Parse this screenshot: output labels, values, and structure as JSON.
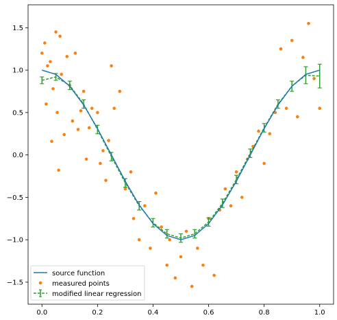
{
  "chart_data": {
    "type": "line",
    "title": "",
    "xlabel": "",
    "ylabel": "",
    "xlim": [
      -0.05,
      1.05
    ],
    "ylim": [
      -1.76,
      1.77
    ],
    "grid": false,
    "legend_position": "lower-left",
    "x_ticks": [
      0.0,
      0.2,
      0.4,
      0.6,
      0.8,
      1.0
    ],
    "x_tick_labels": [
      "0.0",
      "0.2",
      "0.4",
      "0.6",
      "0.8",
      "1.0"
    ],
    "y_ticks": [
      -1.5,
      -1.0,
      -0.5,
      0.0,
      0.5,
      1.0,
      1.5
    ],
    "y_tick_labels": [
      "−1.5",
      "−1.0",
      "−0.5",
      "0.0",
      "0.5",
      "1.0",
      "1.5"
    ],
    "legend": [
      {
        "label": "source function",
        "series": "source"
      },
      {
        "label": "measured points",
        "series": "measured"
      },
      {
        "label": "modified linear regression",
        "series": "regression"
      }
    ],
    "series": [
      {
        "name": "source function",
        "kind": "line",
        "color": "#1f77b4",
        "x": [
          0.0,
          0.05,
          0.1,
          0.15,
          0.2,
          0.25,
          0.3,
          0.35,
          0.4,
          0.45,
          0.5,
          0.55,
          0.6,
          0.65,
          0.7,
          0.75,
          0.8,
          0.85,
          0.9,
          0.95,
          1.0
        ],
        "y": [
          1.0,
          0.95,
          0.81,
          0.59,
          0.31,
          0.0,
          -0.31,
          -0.59,
          -0.81,
          -0.95,
          -1.0,
          -0.95,
          -0.81,
          -0.59,
          -0.31,
          0.0,
          0.31,
          0.59,
          0.81,
          0.95,
          1.0
        ]
      },
      {
        "name": "modified linear regression",
        "kind": "errorbar",
        "color": "#2ca02c",
        "x": [
          0.0,
          0.05,
          0.1,
          0.15,
          0.2,
          0.25,
          0.3,
          0.35,
          0.4,
          0.45,
          0.5,
          0.55,
          0.6,
          0.65,
          0.7,
          0.75,
          0.8,
          0.85,
          0.9,
          0.95,
          1.0
        ],
        "y": [
          0.88,
          0.92,
          0.82,
          0.6,
          0.3,
          -0.02,
          -0.33,
          -0.6,
          -0.8,
          -0.93,
          -0.98,
          -0.93,
          -0.79,
          -0.57,
          -0.29,
          0.02,
          0.32,
          0.6,
          0.81,
          0.94,
          0.93
        ],
        "yerr": [
          0.04,
          0.04,
          0.05,
          0.05,
          0.05,
          0.05,
          0.05,
          0.05,
          0.05,
          0.05,
          0.05,
          0.05,
          0.05,
          0.05,
          0.05,
          0.05,
          0.05,
          0.05,
          0.06,
          0.1,
          0.14
        ]
      },
      {
        "name": "measured points",
        "kind": "scatter",
        "color": "#ff7f0e",
        "x": [
          0.0,
          0.01,
          0.015,
          0.02,
          0.03,
          0.035,
          0.04,
          0.05,
          0.055,
          0.06,
          0.065,
          0.07,
          0.08,
          0.09,
          0.1,
          0.11,
          0.12,
          0.13,
          0.14,
          0.15,
          0.16,
          0.17,
          0.18,
          0.2,
          0.21,
          0.22,
          0.23,
          0.24,
          0.25,
          0.26,
          0.28,
          0.3,
          0.32,
          0.33,
          0.35,
          0.37,
          0.39,
          0.41,
          0.43,
          0.45,
          0.46,
          0.48,
          0.5,
          0.52,
          0.54,
          0.56,
          0.58,
          0.6,
          0.62,
          0.64,
          0.66,
          0.68,
          0.7,
          0.72,
          0.74,
          0.76,
          0.78,
          0.8,
          0.82,
          0.84,
          0.86,
          0.88,
          0.9,
          0.92,
          0.94,
          0.96,
          0.98,
          1.0
        ],
        "y": [
          1.2,
          1.32,
          0.6,
          1.05,
          1.1,
          0.16,
          0.78,
          1.45,
          0.5,
          -0.18,
          1.4,
          0.95,
          0.24,
          1.16,
          0.82,
          0.4,
          1.2,
          0.3,
          0.52,
          0.75,
          -0.05,
          0.32,
          0.55,
          0.5,
          -0.1,
          0.05,
          -0.3,
          0.17,
          1.05,
          0.55,
          0.75,
          -0.4,
          -0.2,
          -0.75,
          -1.0,
          -0.6,
          -1.1,
          -0.45,
          -0.85,
          -1.3,
          -1.0,
          -1.45,
          -1.2,
          -0.9,
          -1.55,
          -1.1,
          -1.3,
          -0.75,
          -1.42,
          -0.65,
          -0.4,
          -0.6,
          -0.2,
          -0.5,
          -0.05,
          0.1,
          0.28,
          -0.1,
          0.25,
          0.5,
          1.25,
          0.55,
          1.35,
          0.45,
          1.15,
          1.55,
          0.9,
          0.55
        ]
      }
    ]
  }
}
